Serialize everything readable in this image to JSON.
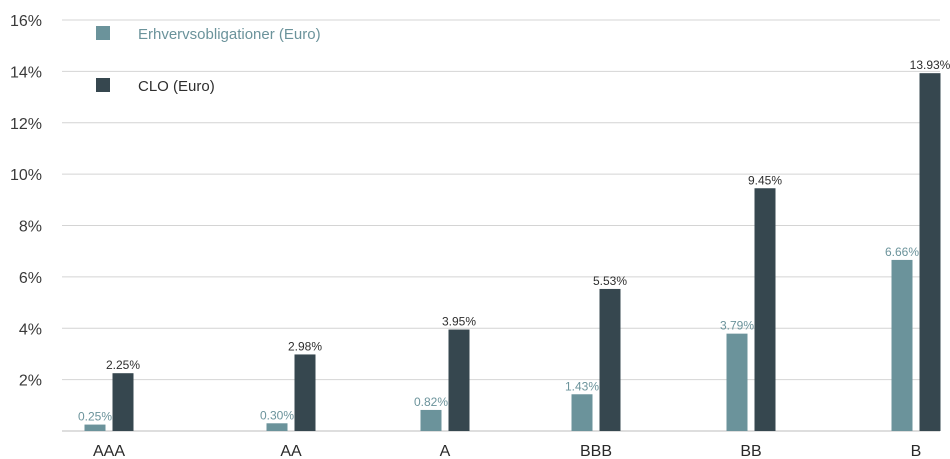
{
  "chart_data": {
    "type": "bar",
    "categories": [
      "AAA",
      "AA",
      "A",
      "BBB",
      "BB",
      "B"
    ],
    "series": [
      {
        "name": "Erhvervsobligationer (Euro)",
        "color": "#6b939b",
        "values": [
          0.25,
          0.3,
          0.82,
          1.43,
          3.79,
          6.66
        ],
        "labels": [
          "0.25%",
          "0.30%",
          "0.82%",
          "1.43%",
          "3.79%",
          "6.66%"
        ]
      },
      {
        "name": "CLO (Euro)",
        "color": "#36474f",
        "values": [
          2.25,
          2.98,
          3.95,
          5.53,
          9.45,
          13.93
        ],
        "labels": [
          "2.25%",
          "2.98%",
          "3.95%",
          "5.53%",
          "9.45%",
          "13.93%"
        ]
      }
    ],
    "ylim": [
      0,
      16
    ],
    "yticks": [
      {
        "value": 2,
        "label": "2%"
      },
      {
        "value": 4,
        "label": "4%"
      },
      {
        "value": 6,
        "label": "6%"
      },
      {
        "value": 8,
        "label": "8%"
      },
      {
        "value": 10,
        "label": "10%"
      },
      {
        "value": 12,
        "label": "12%"
      },
      {
        "value": 14,
        "label": "14%"
      },
      {
        "value": 16,
        "label": "16%"
      }
    ],
    "grid": true,
    "legend_position": "top-left",
    "title": "",
    "xlabel": "",
    "ylabel": ""
  }
}
